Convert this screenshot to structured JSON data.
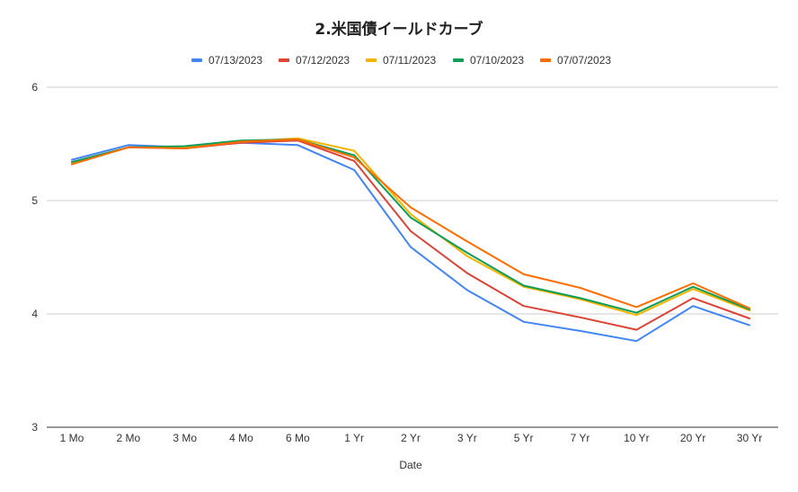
{
  "chart_data": {
    "type": "line",
    "title": "2.米国債イールドカーブ",
    "xlabel": "Date",
    "ylabel": "",
    "ylim": [
      3,
      6
    ],
    "yticks": [
      "3",
      "4",
      "5",
      "6"
    ],
    "grid": true,
    "legend_position": "top",
    "categories": [
      "1 Mo",
      "2 Mo",
      "3 Mo",
      "4 Mo",
      "6 Mo",
      "1 Yr",
      "2 Yr",
      "3 Yr",
      "5 Yr",
      "7 Yr",
      "10 Yr",
      "20 Yr",
      "30 Yr"
    ],
    "series": [
      {
        "name": "07/13/2023",
        "color": "#4285F4",
        "values": [
          5.36,
          5.49,
          5.47,
          5.51,
          5.49,
          5.27,
          4.59,
          4.21,
          3.93,
          3.85,
          3.76,
          4.07,
          3.9
        ]
      },
      {
        "name": "07/12/2023",
        "color": "#DB4437",
        "values": [
          5.34,
          5.47,
          5.46,
          5.51,
          5.53,
          5.35,
          4.73,
          4.36,
          4.07,
          3.97,
          3.86,
          4.14,
          3.96
        ]
      },
      {
        "name": "07/11/2023",
        "color": "#F4B400",
        "values": [
          5.33,
          5.47,
          5.47,
          5.52,
          5.55,
          5.44,
          4.88,
          4.51,
          4.24,
          4.13,
          3.99,
          4.22,
          4.03
        ]
      },
      {
        "name": "07/10/2023",
        "color": "#0F9D58",
        "values": [
          5.34,
          5.47,
          5.48,
          5.53,
          5.54,
          5.4,
          4.85,
          4.54,
          4.25,
          4.14,
          4.01,
          4.24,
          4.04
        ]
      },
      {
        "name": "07/07/2023",
        "color": "#FF6D00",
        "values": [
          5.32,
          5.47,
          5.46,
          5.52,
          5.54,
          5.38,
          4.94,
          4.64,
          4.35,
          4.23,
          4.06,
          4.27,
          4.05
        ]
      }
    ]
  }
}
